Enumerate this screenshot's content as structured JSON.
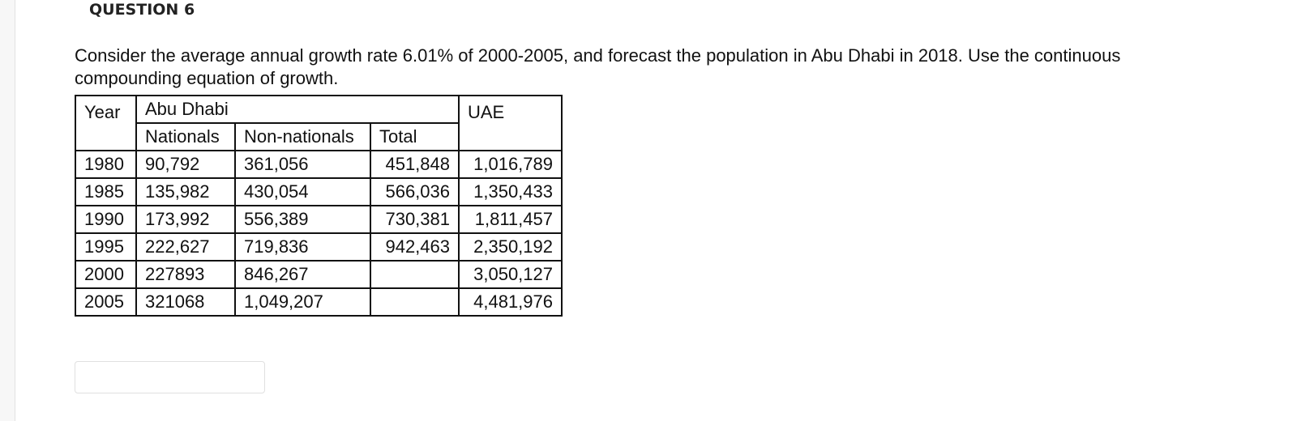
{
  "question": {
    "label": "QUESTION 6",
    "text": "Consider the average annual growth rate 6.01% of 2000-2005, and forecast the population in Abu Dhabi in 2018. Use the continuous compounding equation of growth.",
    "table": {
      "header": {
        "year": "Year",
        "region": "Abu Dhabi",
        "country": "UAE",
        "nationals": "Nationals",
        "non_nationals": "Non-nationals",
        "total": "Total"
      },
      "rows": [
        {
          "year": "1980",
          "nationals": "90,792",
          "non_nationals": "361,056",
          "total": "451,848",
          "uae": "1,016,789"
        },
        {
          "year": "1985",
          "nationals": "135,982",
          "non_nationals": "430,054",
          "total": "566,036",
          "uae": "1,350,433"
        },
        {
          "year": "1990",
          "nationals": "173,992",
          "non_nationals": "556,389",
          "total": "730,381",
          "uae": "1,811,457"
        },
        {
          "year": "1995",
          "nationals": "222,627",
          "non_nationals": "719,836",
          "total": "942,463",
          "uae": "2,350,192"
        },
        {
          "year": "2000",
          "nationals": "227893",
          "non_nationals": "846,267",
          "uae": "3,050,127"
        },
        {
          "year": "2005",
          "nationals": "321068",
          "non_nationals": "1,049,207",
          "uae": "4,481,976"
        }
      ]
    }
  }
}
